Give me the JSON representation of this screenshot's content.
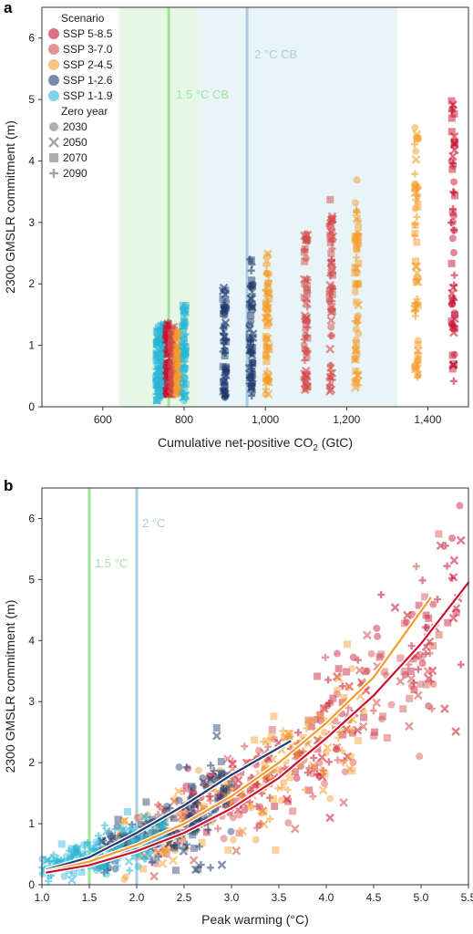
{
  "colors": {
    "SSP 5-8.5": "#c8102e",
    "SSP 3-7.0": "#d44a4a",
    "SSP 2-4.5": "#f39c2a",
    "SSP 1-2.6": "#1f3a6e",
    "SSP 1-1.9": "#29b6d6",
    "cb15": "#9ee39a",
    "cb2": "#a9cce3",
    "shade15": "#e6f7e6",
    "shade2": "#e8f4f8"
  },
  "chart_data": [
    {
      "panel": "a",
      "type": "scatter",
      "xlabel": "Cumulative net-positive CO",
      "xlabel_sub": "2",
      "xlabel_tail": " (GtC)",
      "ylabel": "2300 GMSLR commitment (m)",
      "xlim": [
        450,
        1500
      ],
      "ylim": [
        0,
        6.5
      ],
      "xticks": [
        600,
        800,
        1000,
        1200,
        1400
      ],
      "xtick_labels": [
        "600",
        "800",
        "1,000",
        "1,200",
        "1,400"
      ],
      "yticks": [
        0,
        1,
        2,
        3,
        4,
        5,
        6
      ],
      "ytick_labels": [
        "0",
        "1",
        "2",
        "3",
        "4",
        "5",
        "6"
      ],
      "shaded_regions": [
        {
          "label": "",
          "x": [
            640,
            835
          ],
          "color_key": "shade15"
        },
        {
          "label": "",
          "x": [
            835,
            1325
          ],
          "color_key": "shade2"
        }
      ],
      "vlines": [
        {
          "x": 762,
          "label": "1.5 °C CB",
          "color_key": "cb15"
        },
        {
          "x": 955,
          "label": "2 °C CB",
          "color_key": "cb2"
        }
      ],
      "legend": {
        "title_scenario": "Scenario",
        "scenarios": [
          "SSP 5-8.5",
          "SSP 3-7.0",
          "SSP 2-4.5",
          "SSP 1-2.6",
          "SSP 1-1.9"
        ],
        "title_zero": "Zero year",
        "zero_years": [
          "2030",
          "2050",
          "2070",
          "2090"
        ],
        "markers": [
          "circle",
          "x",
          "square",
          "plus"
        ],
        "placement": "top-left"
      },
      "columns": [
        {
          "x": 735,
          "scenario": "SSP 1-1.9",
          "ymin": 0.1,
          "ymax": 1.3
        },
        {
          "x": 748,
          "scenario": "SSP 1-1.9",
          "ymin": 0.15,
          "ymax": 1.35
        },
        {
          "x": 760,
          "scenario": "SSP 5-8.5",
          "ymin": 0.2,
          "ymax": 1.4
        },
        {
          "x": 772,
          "scenario": "SSP 3-7.0",
          "ymin": 0.2,
          "ymax": 1.3
        },
        {
          "x": 785,
          "scenario": "SSP 2-4.5",
          "ymin": 0.2,
          "ymax": 1.3
        },
        {
          "x": 800,
          "scenario": "SSP 1-1.9",
          "ymin": 0.1,
          "ymax": 1.7
        },
        {
          "x": 900,
          "scenario": "SSP 1-2.6",
          "ymin": 0.15,
          "ymax": 2.0
        },
        {
          "x": 965,
          "scenario": "SSP 1-2.6",
          "ymin": 0.15,
          "ymax": 2.4
        },
        {
          "x": 1005,
          "scenario": "SSP 2-4.5",
          "ymin": 0.2,
          "ymax": 2.5
        },
        {
          "x": 1100,
          "scenario": "SSP 3-7.0",
          "ymin": 0.25,
          "ymax": 2.9
        },
        {
          "x": 1162,
          "scenario": "SSP 3-7.0",
          "ymin": 0.25,
          "ymax": 3.45
        },
        {
          "x": 1225,
          "scenario": "SSP 2-4.5",
          "ymin": 0.3,
          "ymax": 3.7
        },
        {
          "x": 1372,
          "scenario": "SSP 2-4.5",
          "ymin": 0.4,
          "ymax": 4.6
        },
        {
          "x": 1462,
          "scenario": "SSP 5-8.5",
          "ymin": 0.4,
          "ymax": 5.0
        }
      ]
    },
    {
      "panel": "b",
      "type": "scatter",
      "xlabel": "Peak warming (°C)",
      "ylabel": "2300 GMSLR commitment (m)",
      "xlim": [
        1.0,
        5.5
      ],
      "ylim": [
        0,
        6.5
      ],
      "xticks": [
        1.0,
        1.5,
        2.0,
        2.5,
        3.0,
        3.5,
        4.0,
        4.5,
        5.0,
        5.5
      ],
      "xtick_labels": [
        "1.0",
        "1.5",
        "2.0",
        "2.5",
        "3.0",
        "3.5",
        "4.0",
        "4.5",
        "5.0",
        "5.5"
      ],
      "yticks": [
        0,
        1,
        2,
        3,
        4,
        5,
        6
      ],
      "ytick_labels": [
        "0",
        "1",
        "2",
        "3",
        "4",
        "5",
        "6"
      ],
      "vlines": [
        {
          "x": 1.5,
          "label": "1.5 °C",
          "color_key": "cb15"
        },
        {
          "x": 2.0,
          "label": "2 °C",
          "color_key": "cb2"
        }
      ],
      "scatter_clouds": [
        {
          "scenario": "SSP 1-1.9",
          "xrange": [
            1.0,
            2.3
          ],
          "ycenter_at_x": [
            [
              1.0,
              0.3
            ],
            [
              2.3,
              0.9
            ]
          ],
          "spread": 0.25
        },
        {
          "scenario": "SSP 1-2.6",
          "xrange": [
            1.6,
            3.0
          ],
          "ycenter_at_x": [
            [
              1.6,
              0.5
            ],
            [
              3.0,
              1.5
            ]
          ],
          "spread": 0.45
        },
        {
          "scenario": "SSP 2-4.5",
          "xrange": [
            1.8,
            4.4
          ],
          "ycenter_at_x": [
            [
              1.8,
              0.6
            ],
            [
              4.4,
              2.9
            ]
          ],
          "spread": 0.55
        },
        {
          "scenario": "SSP 3-7.0",
          "xrange": [
            2.0,
            5.2
          ],
          "ycenter_at_x": [
            [
              2.0,
              0.8
            ],
            [
              5.2,
              4.1
            ]
          ],
          "spread": 0.7
        },
        {
          "scenario": "SSP 5-8.5",
          "xrange": [
            2.5,
            5.5
          ],
          "ycenter_at_x": [
            [
              2.5,
              1.2
            ],
            [
              5.5,
              4.9
            ]
          ],
          "spread": 0.8
        }
      ],
      "fit_curves": [
        {
          "scenario": "SSP 1-2.6",
          "x": [
            1.05,
            1.5,
            2.0,
            2.5,
            3.0,
            3.62
          ],
          "y": [
            0.25,
            0.45,
            0.85,
            1.3,
            1.8,
            2.35
          ]
        },
        {
          "scenario": "SSP 2-4.5",
          "x": [
            1.05,
            1.5,
            2.0,
            2.5,
            3.0,
            3.5,
            4.0,
            4.5,
            5.1
          ],
          "y": [
            0.22,
            0.38,
            0.65,
            1.0,
            1.45,
            2.0,
            2.65,
            3.4,
            4.7
          ]
        },
        {
          "scenario": "SSP 5-8.5",
          "x": [
            1.05,
            1.5,
            2.0,
            2.5,
            3.0,
            3.5,
            4.0,
            4.5,
            5.0,
            5.5
          ],
          "y": [
            0.2,
            0.32,
            0.55,
            0.85,
            1.25,
            1.75,
            2.4,
            3.1,
            3.95,
            4.95
          ]
        }
      ]
    }
  ]
}
